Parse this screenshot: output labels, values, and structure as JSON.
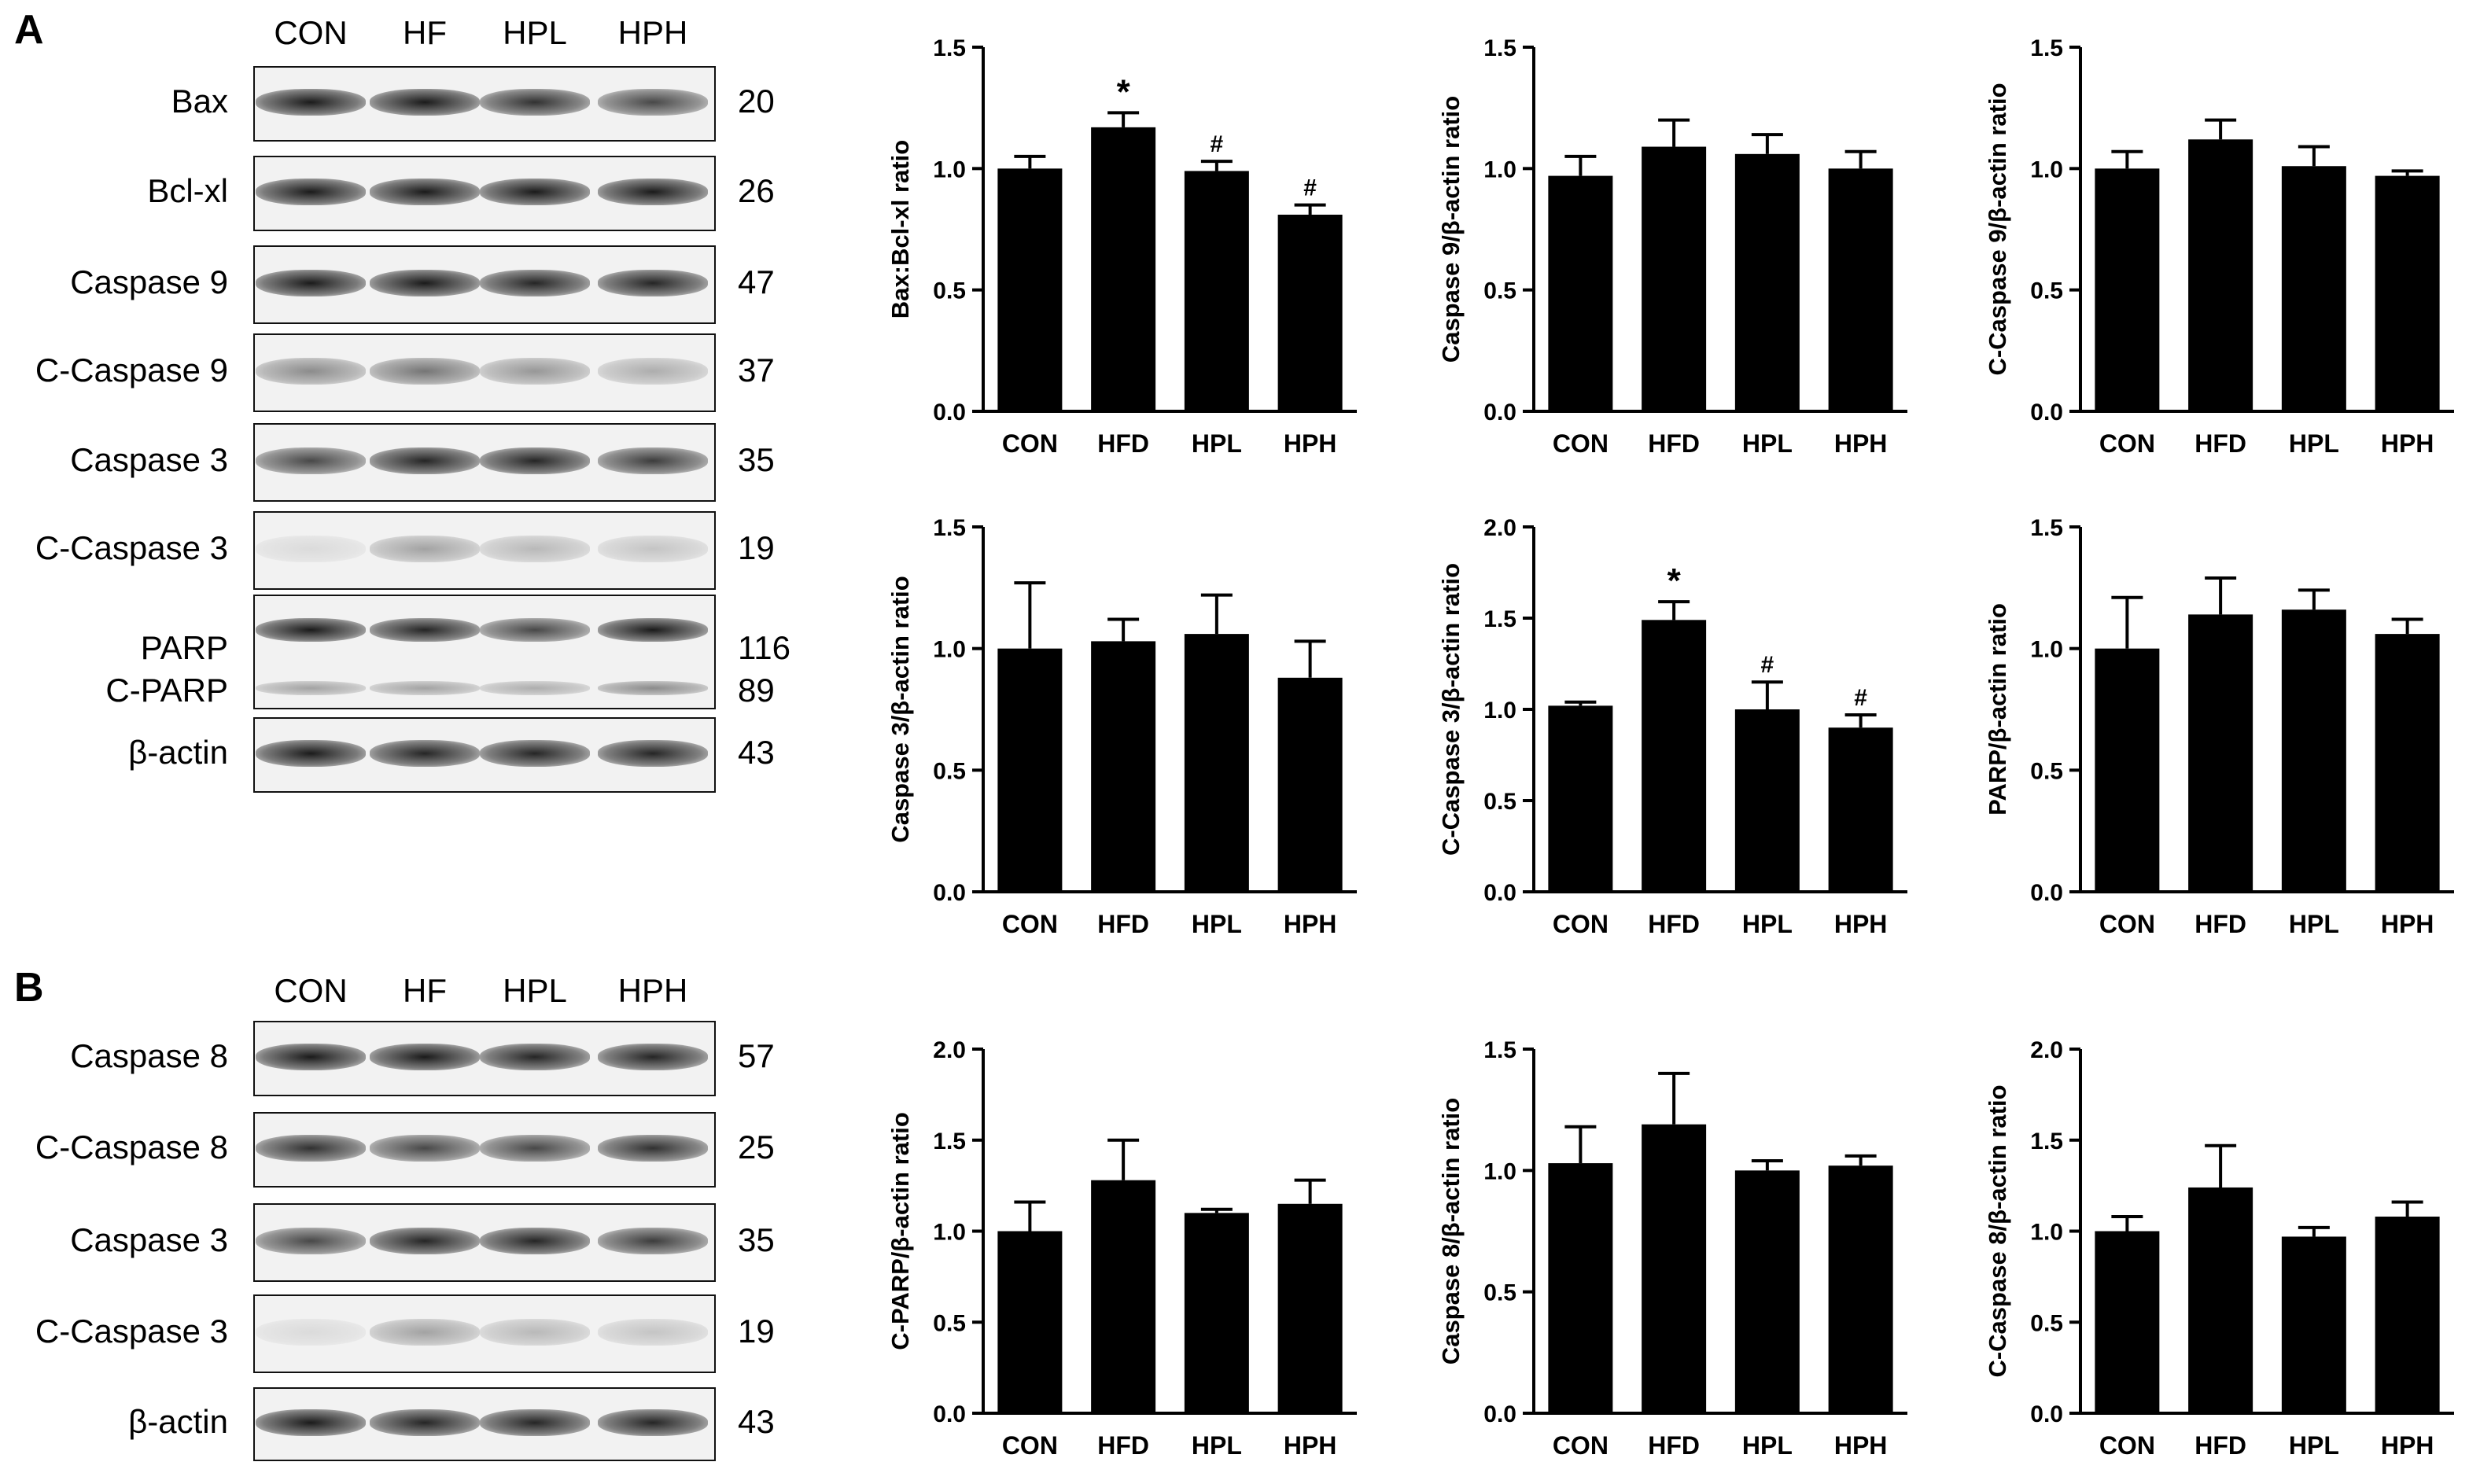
{
  "panels": {
    "A": {
      "letter": "A",
      "lanes": [
        "CON",
        "HF",
        "HPL",
        "HPH"
      ],
      "blots": [
        {
          "label": "Bax",
          "mw": "20",
          "intensity": [
            0.95,
            0.95,
            0.85,
            0.75
          ]
        },
        {
          "label": "Bcl-xl",
          "mw": "26",
          "intensity": [
            0.95,
            0.95,
            0.95,
            0.95
          ]
        },
        {
          "label": "Caspase 9",
          "mw": "47",
          "intensity": [
            0.95,
            0.95,
            0.9,
            0.9
          ]
        },
        {
          "label": "C-Caspase 9",
          "mw": "37",
          "intensity": [
            0.45,
            0.55,
            0.4,
            0.3
          ]
        },
        {
          "label": "Caspase 3",
          "mw": "35",
          "intensity": [
            0.75,
            0.9,
            0.9,
            0.8
          ]
        },
        {
          "label": "C-Caspase 3",
          "mw": "19",
          "intensity": [
            0.1,
            0.35,
            0.25,
            0.2
          ]
        },
        {
          "label": "PARP",
          "label2": "C-PARP",
          "mw": "116",
          "mw2": "89",
          "intensity": [
            0.95,
            0.9,
            0.75,
            0.95
          ],
          "intensity2": [
            0.35,
            0.35,
            0.3,
            0.45
          ]
        },
        {
          "label": "β-actin",
          "mw": "43",
          "intensity": [
            0.95,
            0.9,
            0.9,
            0.9
          ]
        }
      ]
    },
    "B": {
      "letter": "B",
      "lanes": [
        "CON",
        "HF",
        "HPL",
        "HPH"
      ],
      "blots": [
        {
          "label": "Caspase 8",
          "mw": "57",
          "intensity": [
            0.95,
            0.95,
            0.9,
            0.9
          ]
        },
        {
          "label": "C-Caspase 8",
          "mw": "25",
          "intensity": [
            0.85,
            0.75,
            0.75,
            0.85
          ]
        },
        {
          "label": "Caspase 3",
          "mw": "35",
          "intensity": [
            0.75,
            0.9,
            0.9,
            0.8
          ]
        },
        {
          "label": "C-Caspase 3",
          "mw": "19",
          "intensity": [
            0.1,
            0.35,
            0.25,
            0.2
          ]
        },
        {
          "label": "β-actin",
          "mw": "43",
          "intensity": [
            0.95,
            0.9,
            0.9,
            0.9
          ]
        }
      ]
    }
  },
  "chart_data": [
    {
      "type": "bar",
      "categories": [
        "CON",
        "HFD",
        "HPL",
        "HPH"
      ],
      "values": [
        1.0,
        1.17,
        0.99,
        0.81
      ],
      "errors": [
        0.05,
        0.06,
        0.04,
        0.04
      ],
      "marks": [
        "",
        "*",
        "#",
        "#"
      ],
      "ylabel": "Bax:Bcl-xl ratio",
      "ylim": [
        0,
        1.5
      ],
      "yticks": [
        "0.0",
        "0.5",
        "1.0",
        "1.5"
      ]
    },
    {
      "type": "bar",
      "categories": [
        "CON",
        "HFD",
        "HPL",
        "HPH"
      ],
      "values": [
        0.97,
        1.09,
        1.06,
        1.0
      ],
      "errors": [
        0.08,
        0.11,
        0.08,
        0.07
      ],
      "marks": [
        "",
        "",
        "",
        ""
      ],
      "ylabel": "Caspase 9/β-actin ratio",
      "ylim": [
        0,
        1.5
      ],
      "yticks": [
        "0.0",
        "0.5",
        "1.0",
        "1.5"
      ]
    },
    {
      "type": "bar",
      "categories": [
        "CON",
        "HFD",
        "HPL",
        "HPH"
      ],
      "values": [
        1.0,
        1.12,
        1.01,
        0.97
      ],
      "errors": [
        0.07,
        0.08,
        0.08,
        0.02
      ],
      "marks": [
        "",
        "",
        "",
        ""
      ],
      "ylabel": "C-Caspase 9/β-actin ratio",
      "ylim": [
        0,
        1.5
      ],
      "yticks": [
        "0.0",
        "0.5",
        "1.0",
        "1.5"
      ]
    },
    {
      "type": "bar",
      "categories": [
        "CON",
        "HFD",
        "HPL",
        "HPH"
      ],
      "values": [
        1.0,
        1.03,
        1.06,
        0.88
      ],
      "errors": [
        0.27,
        0.09,
        0.16,
        0.15
      ],
      "marks": [
        "",
        "",
        "",
        ""
      ],
      "ylabel": "Caspase 3/β-actin ratio",
      "ylim": [
        0,
        1.5
      ],
      "yticks": [
        "0.0",
        "0.5",
        "1.0",
        "1.5"
      ]
    },
    {
      "type": "bar",
      "categories": [
        "CON",
        "HFD",
        "HPL",
        "HPH"
      ],
      "values": [
        1.02,
        1.49,
        1.0,
        0.9
      ],
      "errors": [
        0.02,
        0.1,
        0.15,
        0.07
      ],
      "marks": [
        "",
        "*",
        "#",
        "#"
      ],
      "ylabel": "C-Caspase 3/β-actin ratio",
      "ylim": [
        0,
        2.0
      ],
      "yticks": [
        "0.0",
        "0.5",
        "1.0",
        "1.5",
        "2.0"
      ]
    },
    {
      "type": "bar",
      "categories": [
        "CON",
        "HFD",
        "HPL",
        "HPH"
      ],
      "values": [
        1.0,
        1.14,
        1.16,
        1.06
      ],
      "errors": [
        0.21,
        0.15,
        0.08,
        0.06
      ],
      "marks": [
        "",
        "",
        "",
        ""
      ],
      "ylabel": "PARP/β-actin ratio",
      "ylim": [
        0,
        1.5
      ],
      "yticks": [
        "0.0",
        "0.5",
        "1.0",
        "1.5"
      ]
    },
    {
      "type": "bar",
      "categories": [
        "CON",
        "HFD",
        "HPL",
        "HPH"
      ],
      "values": [
        1.0,
        1.28,
        1.1,
        1.15
      ],
      "errors": [
        0.16,
        0.22,
        0.02,
        0.13
      ],
      "marks": [
        "",
        "",
        "",
        ""
      ],
      "ylabel": "C-PARP/β-actin ratio",
      "ylim": [
        0,
        2.0
      ],
      "yticks": [
        "0.0",
        "0.5",
        "1.0",
        "1.5",
        "2.0"
      ]
    },
    {
      "type": "bar",
      "categories": [
        "CON",
        "HFD",
        "HPL",
        "HPH"
      ],
      "values": [
        1.03,
        1.19,
        1.0,
        1.02
      ],
      "errors": [
        0.15,
        0.21,
        0.04,
        0.04
      ],
      "marks": [
        "",
        "",
        "",
        ""
      ],
      "ylabel": "Caspase 8/β-actin ratio",
      "ylim": [
        0,
        1.5
      ],
      "yticks": [
        "0.0",
        "0.5",
        "1.0",
        "1.5"
      ]
    },
    {
      "type": "bar",
      "categories": [
        "CON",
        "HFD",
        "HPL",
        "HPH"
      ],
      "values": [
        1.0,
        1.24,
        0.97,
        1.08
      ],
      "errors": [
        0.08,
        0.23,
        0.05,
        0.08
      ],
      "marks": [
        "",
        "",
        "",
        ""
      ],
      "ylabel": "C-Caspase 8/β-actin ratio",
      "ylim": [
        0,
        2.0
      ],
      "yticks": [
        "0.0",
        "0.5",
        "1.0",
        "1.5",
        "2.0"
      ]
    }
  ]
}
